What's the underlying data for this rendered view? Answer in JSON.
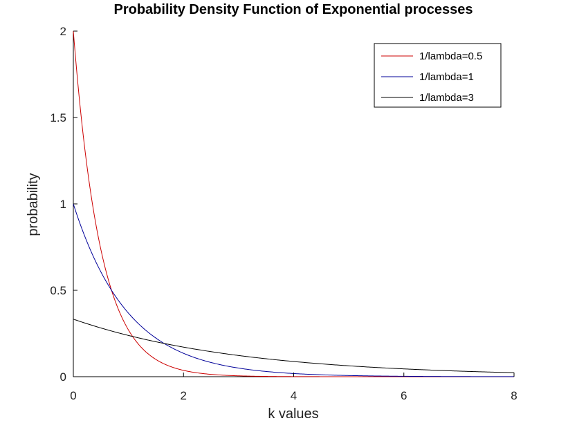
{
  "chart_data": {
    "type": "line",
    "title": "Probability Density Function of Exponential processes",
    "xlabel": "k values",
    "ylabel": "probability",
    "xlim": [
      0,
      8
    ],
    "ylim": [
      0,
      2
    ],
    "xticks": [
      0,
      2,
      4,
      6,
      8
    ],
    "yticks": [
      0,
      0.5,
      1,
      1.5,
      2
    ],
    "xtick_labels": [
      "0",
      "2",
      "4",
      "6",
      "8"
    ],
    "ytick_labels": [
      "0",
      "0.5",
      "1",
      "1.5",
      "2"
    ],
    "grid": false,
    "legend_position": "top-right",
    "x": [
      0,
      0.25,
      0.5,
      0.75,
      1,
      1.25,
      1.5,
      1.75,
      2,
      2.5,
      3,
      3.5,
      4,
      4.5,
      5,
      5.5,
      6,
      6.5,
      7,
      7.5,
      8
    ],
    "series": [
      {
        "name": "1/lambda=0.5",
        "color": "#cc0000",
        "values": [
          2.0,
          1.213,
          0.736,
          0.446,
          0.271,
          0.164,
          0.1,
          0.06,
          0.037,
          0.013,
          0.005,
          0.002,
          0.001,
          0.0,
          0.0,
          0.0,
          0.0,
          0.0,
          0.0,
          0.0,
          0.0
        ]
      },
      {
        "name": "1/lambda=1",
        "color": "#000099",
        "values": [
          1.0,
          0.779,
          0.607,
          0.472,
          0.368,
          0.287,
          0.223,
          0.174,
          0.135,
          0.082,
          0.05,
          0.03,
          0.018,
          0.011,
          0.007,
          0.004,
          0.002,
          0.002,
          0.001,
          0.001,
          0.0
        ]
      },
      {
        "name": "1/lambda=3",
        "color": "#000000",
        "values": [
          0.333,
          0.307,
          0.283,
          0.26,
          0.239,
          0.22,
          0.202,
          0.186,
          0.171,
          0.145,
          0.123,
          0.104,
          0.088,
          0.074,
          0.063,
          0.053,
          0.045,
          0.038,
          0.032,
          0.027,
          0.023
        ]
      }
    ]
  }
}
